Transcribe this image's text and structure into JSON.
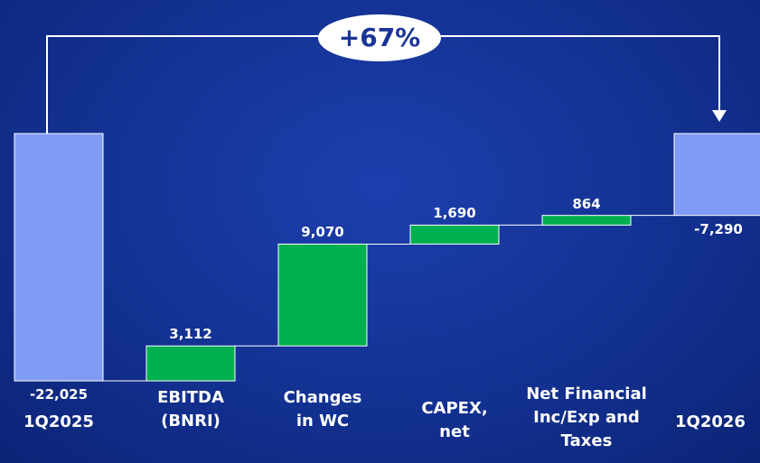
{
  "chart_data": {
    "type": "waterfall",
    "annotation": "+67%",
    "categories": [
      "1Q2025",
      "EBITDA (BNRI)",
      "Changes in WC",
      "CAPEX, net",
      "Net Financial Inc/Exp and Taxes",
      "1Q2026"
    ],
    "values": [
      -22025,
      3112,
      9070,
      1690,
      864,
      -7290
    ],
    "value_labels": [
      "-22,025",
      "3,112",
      "9,070",
      "1,690",
      "864",
      "-7,290"
    ],
    "total_color": "#7f9bf3",
    "increase_color": "#00b050"
  }
}
